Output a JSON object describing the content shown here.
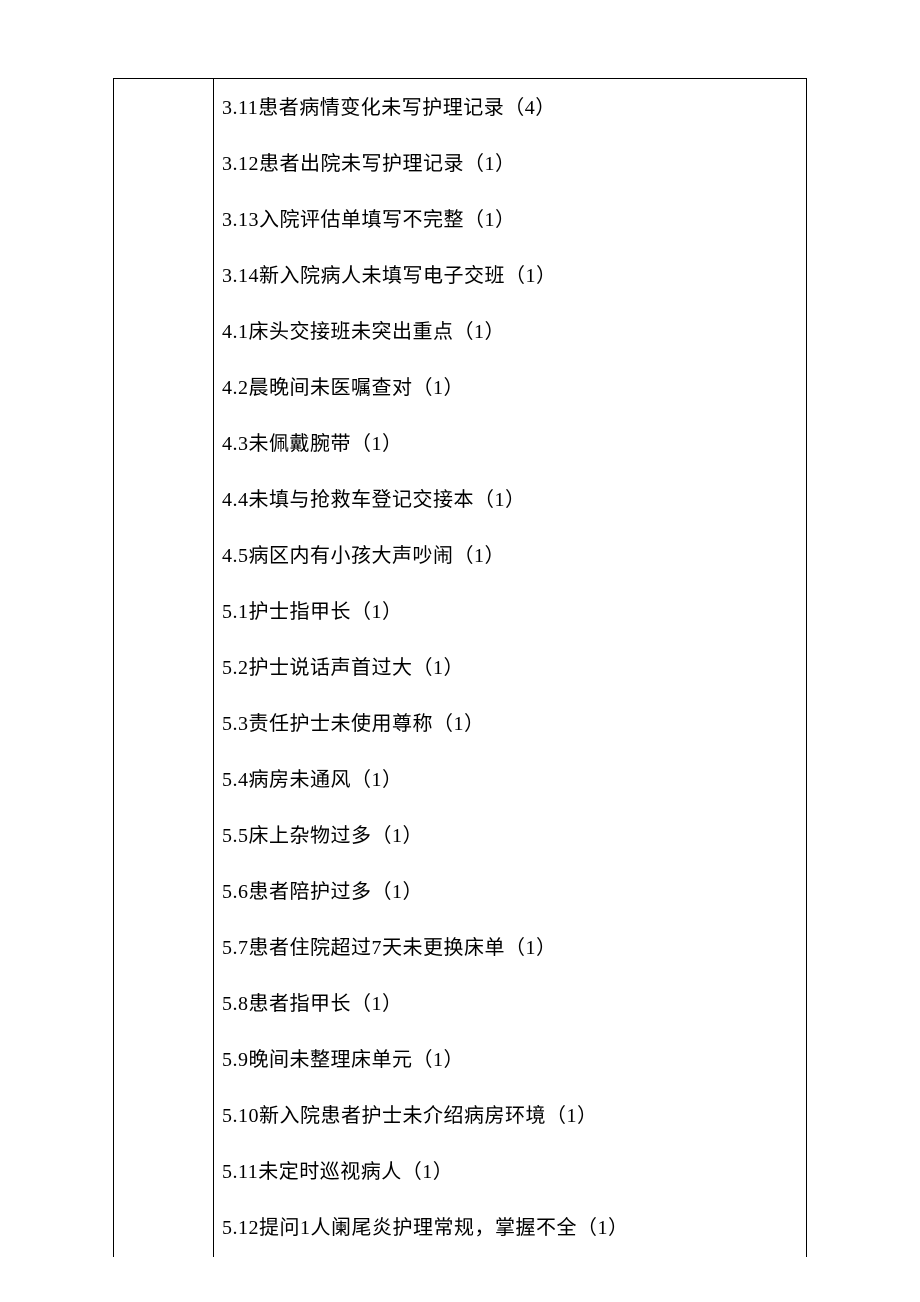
{
  "items": [
    "3.11患者病情变化未写护理记录（4）",
    "3.12患者出院未写护理记录（1）",
    "3.13入院评估单填写不完整（1）",
    "3.14新入院病人未填写电子交班（1）",
    "4.1床头交接班未突出重点（1）",
    "4.2晨晚间未医嘱查对（1）",
    "4.3未佩戴腕带（1）",
    "4.4未填与抢救车登记交接本（1）",
    "4.5病区内有小孩大声吵闹（1）",
    "5.1护士指甲长（1）",
    "5.2护士说话声首过大（1）",
    "5.3责任护士未使用尊称（1）",
    "5.4病房未通风（1）",
    "5.5床上杂物过多（1）",
    "5.6患者陪护过多（1）",
    "5.7患者住院超过7天未更换床单（1）",
    "5.8患者指甲长（1）",
    "5.9晚间未整理床单元（1）",
    "5.10新入院患者护士未介绍病房环境（1）",
    "5.11未定时巡视病人（1）",
    "5.12提问1人阑尾炎护理常规，掌握不全（1）"
  ]
}
